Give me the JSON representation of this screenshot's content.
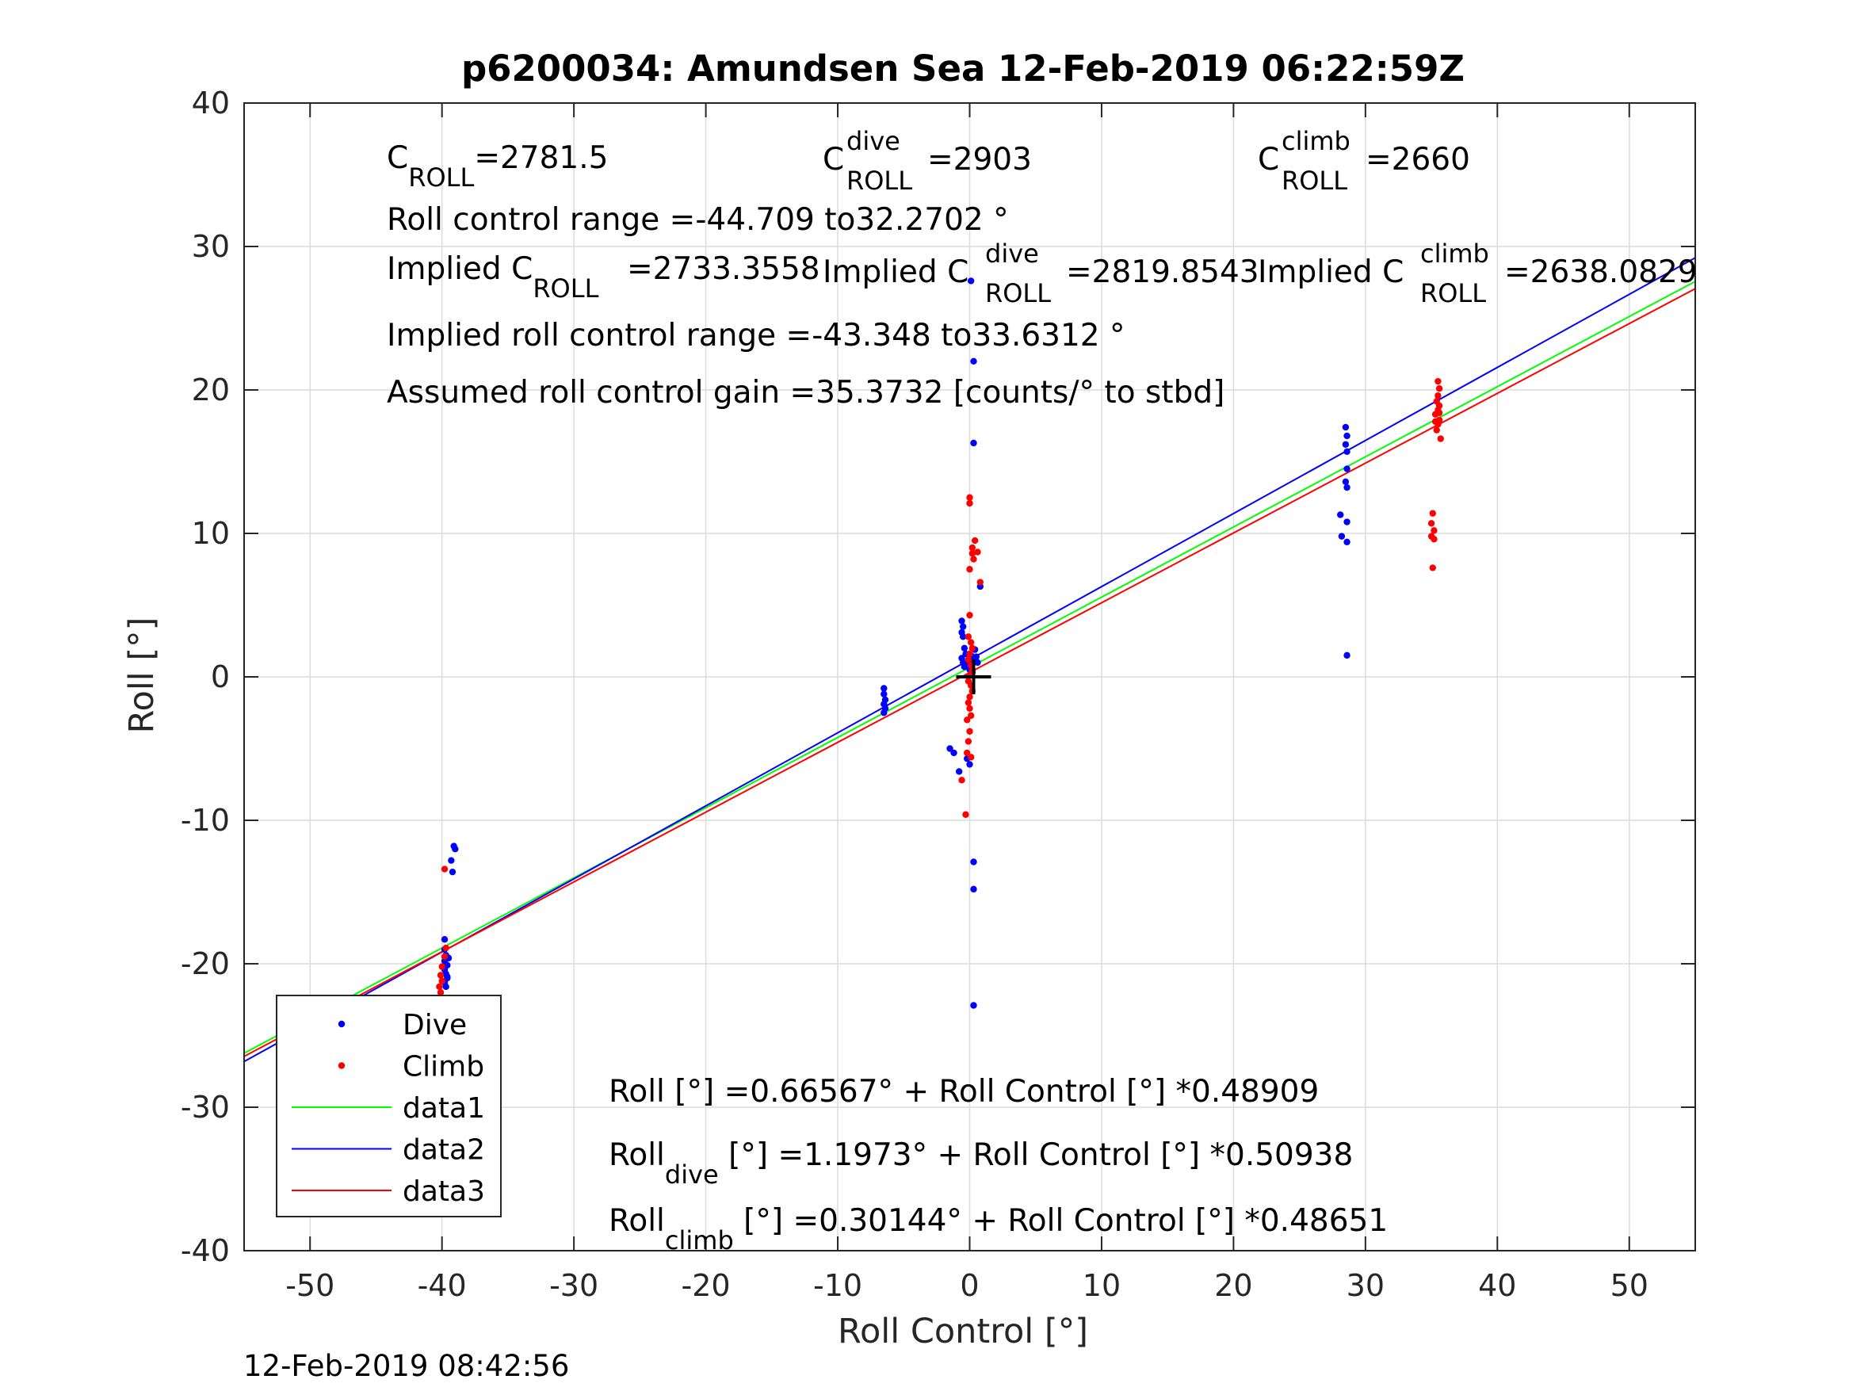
{
  "chart_data": {
    "type": "scatter",
    "title": "p6200034: Amundsen Sea 12-Feb-2019 06:22:59Z",
    "xlabel": "Roll Control [°]",
    "ylabel": "Roll [°]",
    "xlim": [
      -55,
      55
    ],
    "ylim": [
      -40,
      40
    ],
    "xticks": [
      -50,
      -40,
      -30,
      -20,
      -10,
      0,
      10,
      20,
      30,
      40,
      50
    ],
    "yticks": [
      -40,
      -30,
      -20,
      -10,
      0,
      10,
      20,
      30,
      40
    ],
    "grid": true,
    "legend_position": "bottom-left",
    "series": [
      {
        "name": "Dive",
        "kind": "points",
        "color": "#0000ff",
        "points": [
          [
            -39.8,
            -18.3
          ],
          [
            -39.8,
            -19.0
          ],
          [
            -39.7,
            -19.4
          ],
          [
            -39.8,
            -19.8
          ],
          [
            -39.6,
            -20.1
          ],
          [
            -39.8,
            -20.4
          ],
          [
            -39.7,
            -20.7
          ],
          [
            -39.6,
            -21.0
          ],
          [
            -39.8,
            -21.3
          ],
          [
            -39.7,
            -21.6
          ],
          [
            -39.5,
            -19.6
          ],
          [
            -39.6,
            -20.9
          ],
          [
            -39.1,
            -11.8
          ],
          [
            -39.0,
            -12.0
          ],
          [
            -39.3,
            -12.8
          ],
          [
            -39.2,
            -13.6
          ],
          [
            -6.5,
            -0.8
          ],
          [
            -6.5,
            -1.2
          ],
          [
            -6.4,
            -1.6
          ],
          [
            -6.5,
            -1.9
          ],
          [
            -6.4,
            -2.2
          ],
          [
            -6.5,
            -2.5
          ],
          [
            -0.6,
            3.9
          ],
          [
            -0.5,
            3.5
          ],
          [
            -0.6,
            3.1
          ],
          [
            -0.5,
            2.8
          ],
          [
            -0.4,
            2.0
          ],
          [
            -0.3,
            1.6
          ],
          [
            -0.6,
            1.3
          ],
          [
            -0.5,
            1.0
          ],
          [
            -0.4,
            0.7
          ],
          [
            0.0,
            0.5
          ],
          [
            0.2,
            0.3
          ],
          [
            0.3,
            1.1
          ],
          [
            0.5,
            1.4
          ],
          [
            0.4,
            1.9
          ],
          [
            -0.2,
            0.9
          ],
          [
            0.1,
            1.5
          ],
          [
            0.6,
            1.0
          ],
          [
            0.8,
            6.3
          ],
          [
            0.3,
            16.3
          ],
          [
            0.3,
            22.0
          ],
          [
            0.1,
            27.6
          ],
          [
            -1.5,
            -5.0
          ],
          [
            -1.2,
            -5.3
          ],
          [
            -0.8,
            -6.6
          ],
          [
            -0.2,
            -5.7
          ],
          [
            0.0,
            -6.1
          ],
          [
            0.3,
            -12.9
          ],
          [
            0.3,
            -14.8
          ],
          [
            0.3,
            -22.9
          ],
          [
            28.5,
            17.4
          ],
          [
            28.6,
            16.8
          ],
          [
            28.5,
            16.2
          ],
          [
            28.6,
            15.7
          ],
          [
            28.6,
            14.5
          ],
          [
            28.5,
            13.6
          ],
          [
            28.6,
            13.2
          ],
          [
            28.1,
            11.3
          ],
          [
            28.6,
            10.8
          ],
          [
            28.2,
            9.8
          ],
          [
            28.6,
            9.4
          ],
          [
            28.6,
            1.5
          ]
        ]
      },
      {
        "name": "Climb",
        "kind": "points",
        "color": "#ff0000",
        "points": [
          [
            -40.1,
            -20.8
          ],
          [
            -40.0,
            -21.2
          ],
          [
            -40.2,
            -21.6
          ],
          [
            -40.1,
            -22.0
          ],
          [
            -40.0,
            -22.4
          ],
          [
            -40.2,
            -22.8
          ],
          [
            -40.1,
            -23.3
          ],
          [
            -39.7,
            -18.9
          ],
          [
            -39.8,
            -19.5
          ],
          [
            -40.0,
            -20.2
          ],
          [
            -40.1,
            -26.6
          ],
          [
            -39.8,
            -13.4
          ],
          [
            -0.3,
            -9.6
          ],
          [
            -0.6,
            -7.2
          ],
          [
            -0.2,
            -5.3
          ],
          [
            0.1,
            -5.6
          ],
          [
            -0.1,
            -4.5
          ],
          [
            0.0,
            -3.8
          ],
          [
            -0.2,
            -3.0
          ],
          [
            0.1,
            -2.7
          ],
          [
            0.0,
            -2.2
          ],
          [
            -0.1,
            -1.8
          ],
          [
            0.0,
            -1.4
          ],
          [
            0.2,
            -1.0
          ],
          [
            0.1,
            -0.6
          ],
          [
            -0.1,
            -0.3
          ],
          [
            0.0,
            0.1
          ],
          [
            0.2,
            0.4
          ],
          [
            0.1,
            0.8
          ],
          [
            -0.1,
            1.2
          ],
          [
            0.0,
            1.6
          ],
          [
            0.2,
            2.0
          ],
          [
            0.1,
            2.4
          ],
          [
            -0.1,
            2.8
          ],
          [
            0.0,
            4.3
          ],
          [
            0.0,
            7.5
          ],
          [
            0.3,
            8.2
          ],
          [
            0.2,
            8.6
          ],
          [
            0.6,
            8.7
          ],
          [
            0.2,
            9.0
          ],
          [
            0.4,
            9.5
          ],
          [
            0.0,
            12.1
          ],
          [
            0.0,
            12.5
          ],
          [
            0.8,
            6.6
          ],
          [
            35.1,
            11.4
          ],
          [
            35.0,
            10.7
          ],
          [
            35.2,
            10.2
          ],
          [
            35.0,
            9.8
          ],
          [
            35.2,
            9.6
          ],
          [
            35.1,
            7.6
          ],
          [
            35.4,
            17.2
          ],
          [
            35.5,
            17.6
          ],
          [
            35.6,
            17.9
          ],
          [
            35.3,
            18.3
          ],
          [
            35.5,
            18.6
          ],
          [
            35.6,
            18.9
          ],
          [
            35.4,
            19.2
          ],
          [
            35.5,
            19.6
          ],
          [
            35.6,
            20.1
          ],
          [
            35.5,
            20.6
          ],
          [
            35.7,
            16.6
          ],
          [
            35.3,
            17.8
          ],
          [
            35.6,
            18.4
          ]
        ]
      },
      {
        "name": "data1",
        "kind": "line",
        "color": "#00ff00",
        "x": [
          -55,
          55
        ],
        "y": [
          -26.235,
          27.565
        ]
      },
      {
        "name": "data2",
        "kind": "line",
        "color": "#0000ff",
        "x": [
          -55,
          55
        ],
        "y": [
          -26.819,
          29.213
        ]
      },
      {
        "name": "data3",
        "kind": "line",
        "color": "#ff0000",
        "x": [
          -55,
          55
        ],
        "y": [
          -26.457,
          27.06
        ]
      }
    ],
    "crosshair": {
      "x": 0.3,
      "y": 0.0,
      "color": "#000000"
    }
  },
  "annotations": {
    "c_roll_base": "C",
    "c_roll_sub": "ROLL",
    "c_roll_val": "=2781.5",
    "c_dive_base": "C",
    "c_dive_sup": "dive",
    "c_dive_sub": "ROLL",
    "c_dive_val": "=2903",
    "c_climb_base": "C",
    "c_climb_sup": "climb",
    "c_climb_sub": "ROLL",
    "c_climb_val": "=2660",
    "range": "Roll control range =-44.709 to32.2702 °",
    "impl_base": "Implied C",
    "impl_sub": "ROLL",
    "impl_val": "=2733.3558",
    "impl_dive_base": "Implied C",
    "impl_dive_sup": "dive",
    "impl_dive_sub": "ROLL",
    "impl_dive_val": "=2819.8543",
    "impl_climb_base": "Implied C",
    "impl_climb_sup": "climb",
    "impl_climb_sub": "ROLL",
    "impl_climb_val": "=2638.0829",
    "impl_range": "Implied roll control range =-43.348 to33.6312 °",
    "gain": "Assumed roll control gain =35.3732 [counts/° to stbd]",
    "eq1": "Roll [°] =0.66567° + Roll Control [°] *0.48909",
    "eq2_base": "Roll",
    "eq2_sub": "dive",
    "eq2_rest": " [°] =1.1973° + Roll Control [°] *0.50938",
    "eq3_base": "Roll",
    "eq3_sub": "climb",
    "eq3_rest": " [°] =0.30144° + Roll Control [°] *0.48651"
  },
  "timestamp": "12-Feb-2019 08:42:56"
}
